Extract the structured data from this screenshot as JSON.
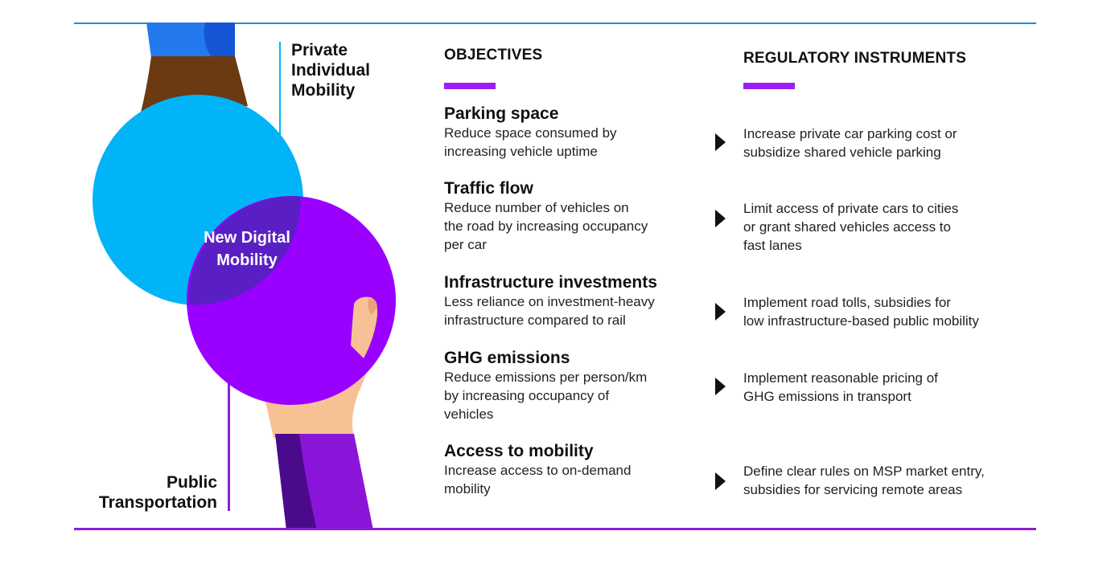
{
  "labels": {
    "private_line1": "Private",
    "private_line2": "Individual",
    "private_line3": "Mobility",
    "public_line1": "Public",
    "public_line2": "Transportation",
    "center_line1": "New Digital",
    "center_line2": "Mobility"
  },
  "headers": {
    "objectives": "OBJECTIVES",
    "regulatory": "REGULATORY INSTRUMENTS"
  },
  "rows": [
    {
      "title": "Parking space",
      "desc": [
        "Reduce space consumed by",
        "increasing vehicle uptime"
      ],
      "reg": [
        "Increase private car parking cost or",
        "subsidize shared vehicle parking"
      ]
    },
    {
      "title": "Traffic flow",
      "desc": [
        "Reduce number of vehicles on",
        "the road by increasing occupancy",
        "per car"
      ],
      "reg": [
        "Limit access of private cars to cities",
        "or grant shared vehicles access to",
        "fast lanes"
      ]
    },
    {
      "title": "Infrastructure investments",
      "desc": [
        "Less reliance on investment-heavy",
        "infrastructure compared to rail"
      ],
      "reg": [
        "Implement road tolls, subsidies for",
        "low infrastructure-based public mobility"
      ]
    },
    {
      "title": "GHG emissions",
      "desc": [
        "Reduce emissions per person/km",
        "by increasing occupancy of",
        "vehicles"
      ],
      "reg": [
        "Implement reasonable pricing of",
        "GHG emissions in transport"
      ]
    },
    {
      "title": "Access to mobility",
      "desc": [
        "Increase access to on-demand",
        "mobility"
      ],
      "reg": [
        "Define clear rules on MSP market entry,",
        "subsidies for servicing remote areas"
      ]
    }
  ],
  "colors": {
    "blue_circle": "#00b4f7",
    "purple_circle": "#9a00ff",
    "overlap": "#5a1fc4",
    "accent_bar": "#9c1ef2",
    "top_rule": "#1a8fe3",
    "bottom_rule": "#8a1fd6"
  }
}
